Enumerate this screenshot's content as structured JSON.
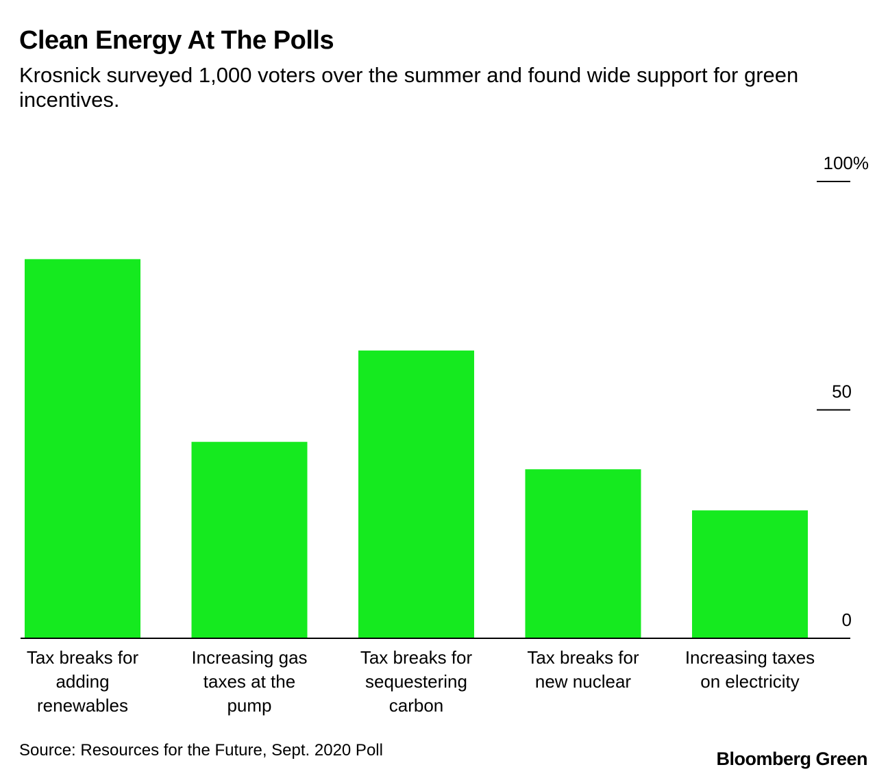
{
  "title": "Clean Energy At The Polls",
  "subtitle": "Krosnick surveyed 1,000 voters over the summer and found wide support for green incentives.",
  "source": "Source: Resources for the Future, Sept. 2020 Poll",
  "brand": "Bloomberg Green",
  "colors": {
    "bar": "#15EA1F",
    "axis": "#000000",
    "text": "#000000"
  },
  "chart_data": {
    "type": "bar",
    "title": "Clean Energy At The Polls",
    "subtitle": "Krosnick surveyed 1,000 voters over the summer and found wide support for green incentives.",
    "categories": [
      [
        "Tax breaks for",
        "adding",
        "renewables"
      ],
      [
        "Increasing gas",
        "taxes at the",
        "pump"
      ],
      [
        "Tax breaks for",
        "sequestering",
        "carbon"
      ],
      [
        "Tax breaks for",
        "new nuclear"
      ],
      [
        "Increasing taxes",
        "on electricity"
      ]
    ],
    "values": [
      83,
      43,
      63,
      37,
      28
    ],
    "ylim": [
      0,
      100
    ],
    "yticks": [
      {
        "value": 0,
        "label": "0"
      },
      {
        "value": 50,
        "label": "50"
      },
      {
        "value": 100,
        "label": "100%"
      }
    ],
    "y_axis_position": "right",
    "grid": false,
    "legend": "none"
  }
}
